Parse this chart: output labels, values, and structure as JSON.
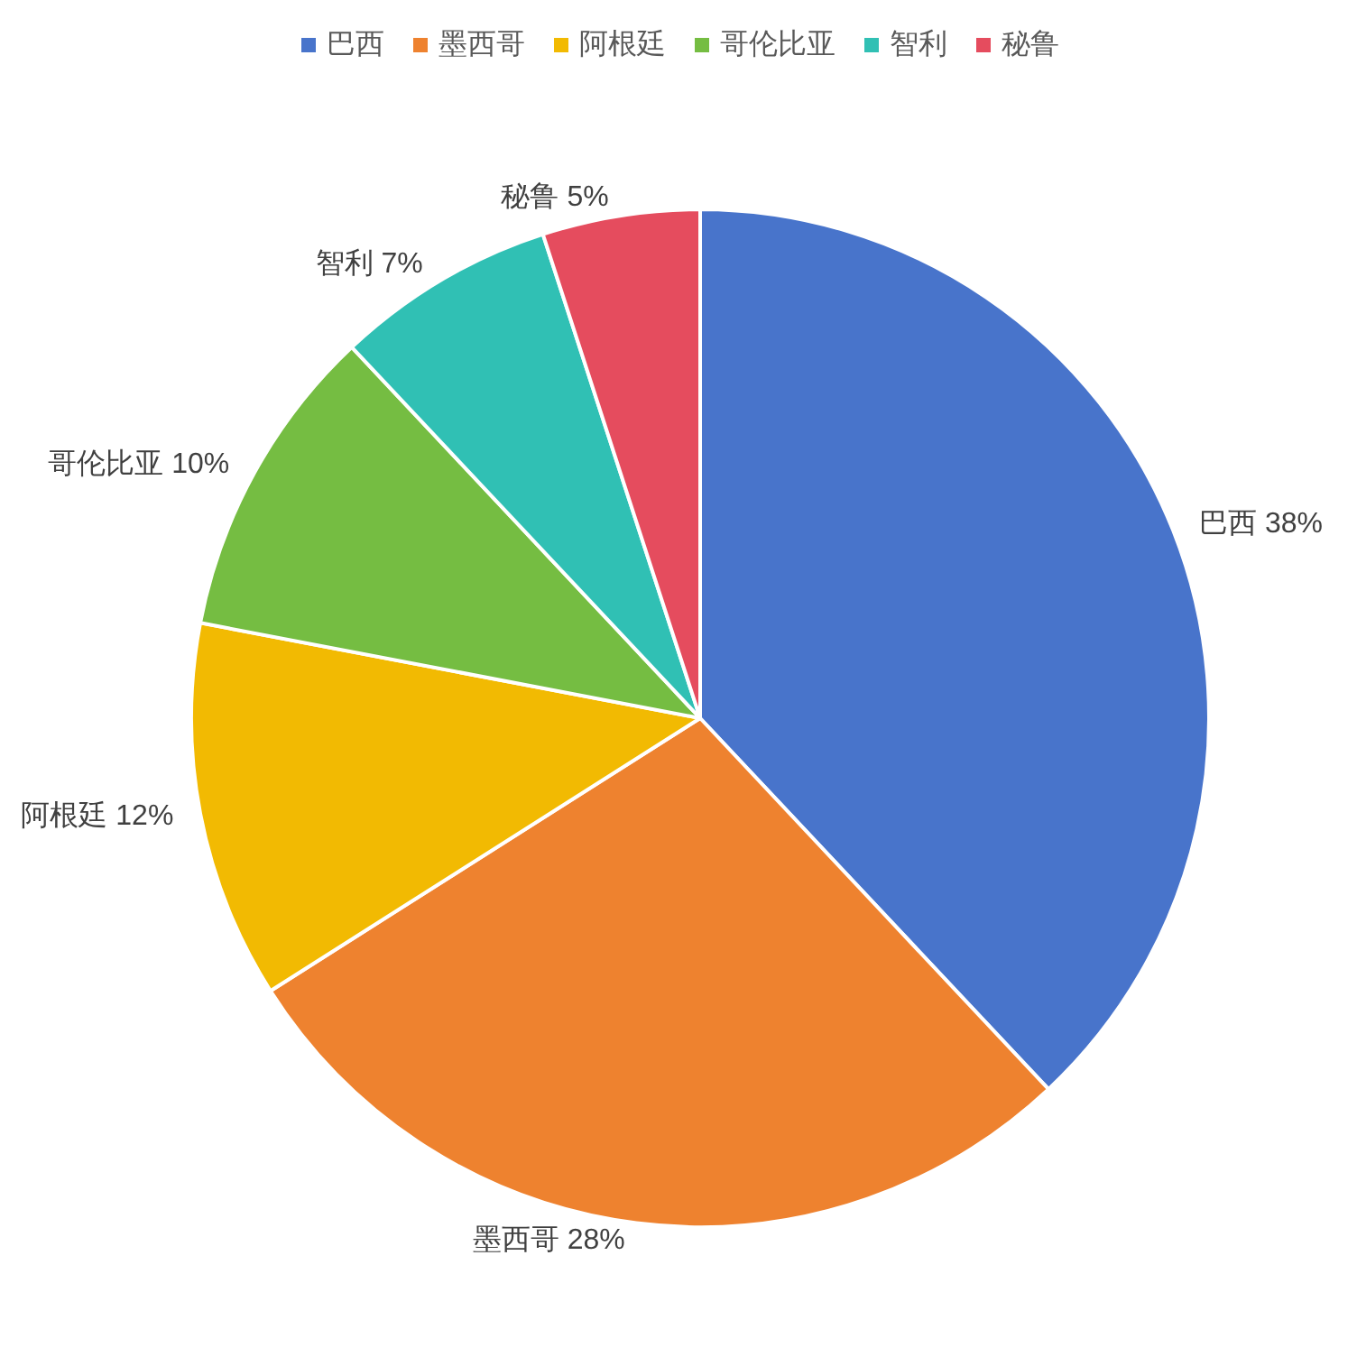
{
  "chart_data": {
    "type": "pie",
    "categories": [
      "巴西",
      "墨西哥",
      "阿根廷",
      "哥伦比亚",
      "智利",
      "秘鲁"
    ],
    "values": [
      38,
      28,
      12,
      10,
      7,
      5
    ],
    "value_labels": [
      "38%",
      "28%",
      "12%",
      "10%",
      "7%",
      "5%"
    ],
    "colors": [
      "#4874cb",
      "#ee822f",
      "#f2ba02",
      "#75bd42",
      "#30c0b4",
      "#e54c5e"
    ],
    "legend": "top"
  }
}
